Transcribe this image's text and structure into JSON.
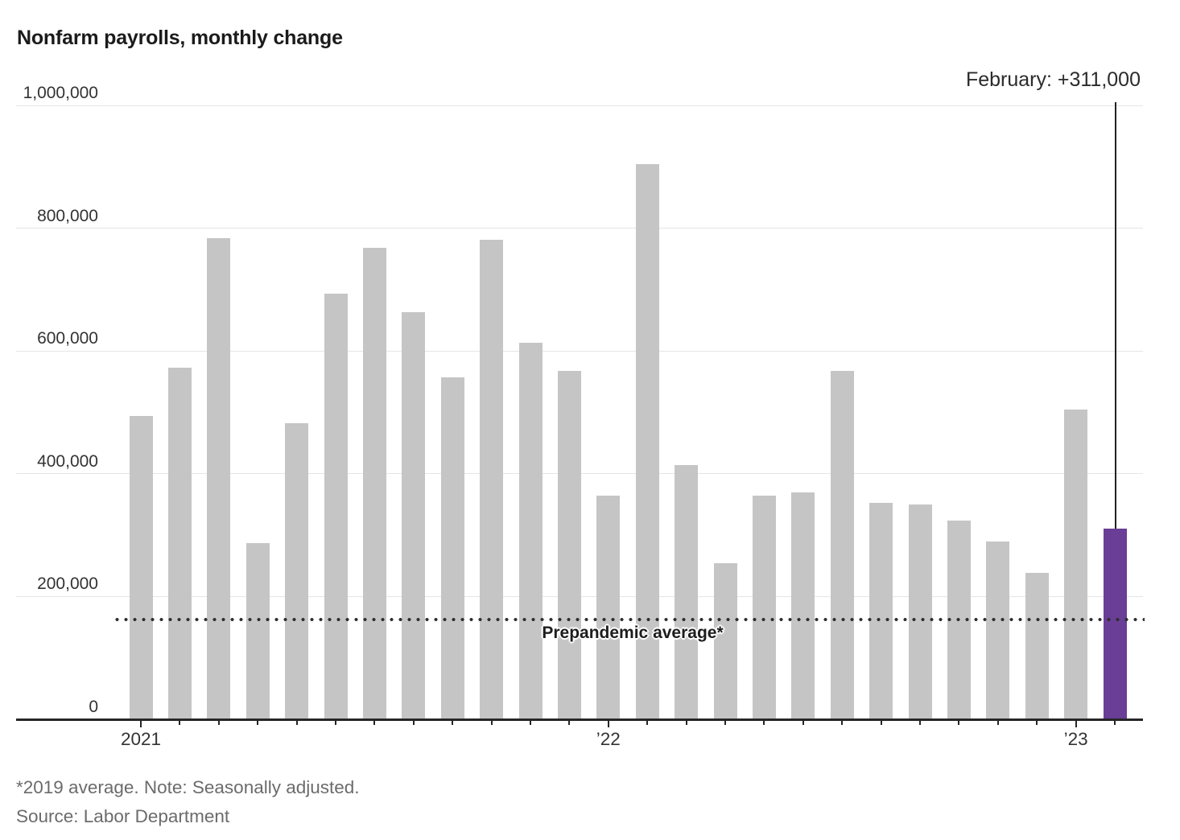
{
  "title": "Nonfarm payrolls, monthly change",
  "annotation": {
    "label": "February: +311,000"
  },
  "reference_line": {
    "label": "Prepandemic average*",
    "value": 163000
  },
  "footnote": "*2019 average. Note: Seasonally adjusted.",
  "source": "Source: Labor Department",
  "y_axis": {
    "tick_values": [
      0,
      200000,
      400000,
      600000,
      800000,
      1000000
    ],
    "tick_labels": [
      "0",
      "200,000",
      "400,000",
      "600,000",
      "800,000",
      "1,000,000"
    ]
  },
  "x_axis": {
    "year_labels": [
      {
        "month_index": 0,
        "label": "2021"
      },
      {
        "month_index": 12,
        "label": "’22"
      },
      {
        "month_index": 24,
        "label": "’23"
      }
    ]
  },
  "colors": {
    "bar": "#c5c5c5",
    "highlight": "#6a3d96",
    "axis": "#262626",
    "grid": "#e5e5e5",
    "label": "#333333",
    "title": "#1b1b1b",
    "muted": "#6b6b6b",
    "dotted": "#2e2e2e"
  },
  "chart_data": {
    "type": "bar",
    "title": "Nonfarm payrolls, monthly change",
    "x": [
      "Jan 2021",
      "Feb 2021",
      "Mar 2021",
      "Apr 2021",
      "May 2021",
      "Jun 2021",
      "Jul 2021",
      "Aug 2021",
      "Sep 2021",
      "Oct 2021",
      "Nov 2021",
      "Dec 2021",
      "Jan 2022",
      "Feb 2022",
      "Mar 2022",
      "Apr 2022",
      "May 2022",
      "Jun 2022",
      "Jul 2022",
      "Aug 2022",
      "Sep 2022",
      "Oct 2022",
      "Nov 2022",
      "Dec 2022",
      "Jan 2023",
      "Feb 2023"
    ],
    "values": [
      494000,
      573000,
      784000,
      287000,
      482000,
      693000,
      768000,
      663000,
      557000,
      781000,
      614000,
      568000,
      364000,
      904000,
      414000,
      254000,
      364000,
      370000,
      568000,
      352000,
      350000,
      324000,
      290000,
      239000,
      504000,
      311000
    ],
    "highlight_index": 25,
    "highlight_label": "February: +311,000",
    "ylim": [
      0,
      1000000
    ],
    "yticks": [
      0,
      200000,
      400000,
      600000,
      800000,
      1000000
    ],
    "reference_line": {
      "label": "Prepandemic average*",
      "value": 163000
    },
    "grid": "horizontal",
    "legend": "none",
    "note": "*2019 average. Note: Seasonally adjusted.",
    "source": "Source: Labor Department"
  }
}
